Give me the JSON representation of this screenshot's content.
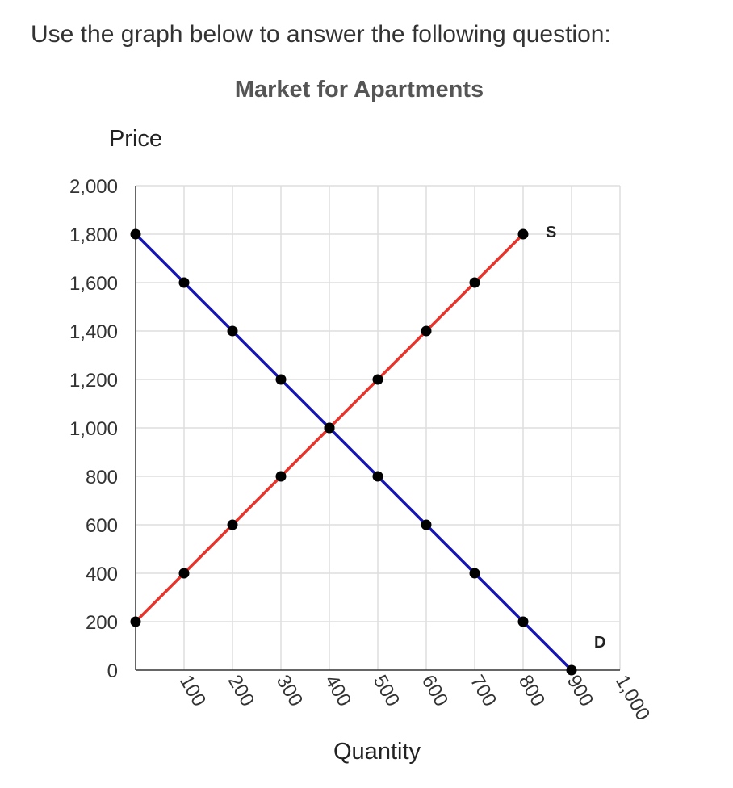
{
  "question": "Use the graph below to answer the following question:",
  "chart_data": {
    "type": "line",
    "title": "Market for Apartments",
    "xlabel": "Quantity",
    "ylabel": "Price",
    "xlim": [
      0,
      1000
    ],
    "ylim": [
      0,
      2000
    ],
    "x_ticks": [
      100,
      200,
      300,
      400,
      500,
      600,
      700,
      800,
      900,
      1000
    ],
    "x_tick_labels": [
      "100",
      "200",
      "300",
      "400",
      "500",
      "600",
      "700",
      "800",
      "900",
      "1,000"
    ],
    "y_ticks": [
      0,
      200,
      400,
      600,
      800,
      1000,
      1200,
      1400,
      1600,
      1800,
      2000
    ],
    "y_tick_labels": [
      "0",
      "200",
      "400",
      "600",
      "800",
      "1,000",
      "1,200",
      "1,400",
      "1,600",
      "1,800",
      "2,000"
    ],
    "grid": true,
    "series": [
      {
        "name": "S",
        "color": "#e8322a",
        "x": [
          0,
          100,
          200,
          300,
          400,
          500,
          600,
          700,
          800
        ],
        "y": [
          200,
          400,
          600,
          800,
          1000,
          1200,
          1400,
          1600,
          1800
        ]
      },
      {
        "name": "D",
        "color": "#1515b5",
        "x": [
          0,
          100,
          200,
          300,
          400,
          500,
          600,
          700,
          800,
          900
        ],
        "y": [
          1800,
          1600,
          1400,
          1200,
          1000,
          800,
          600,
          400,
          200,
          0
        ]
      }
    ]
  }
}
